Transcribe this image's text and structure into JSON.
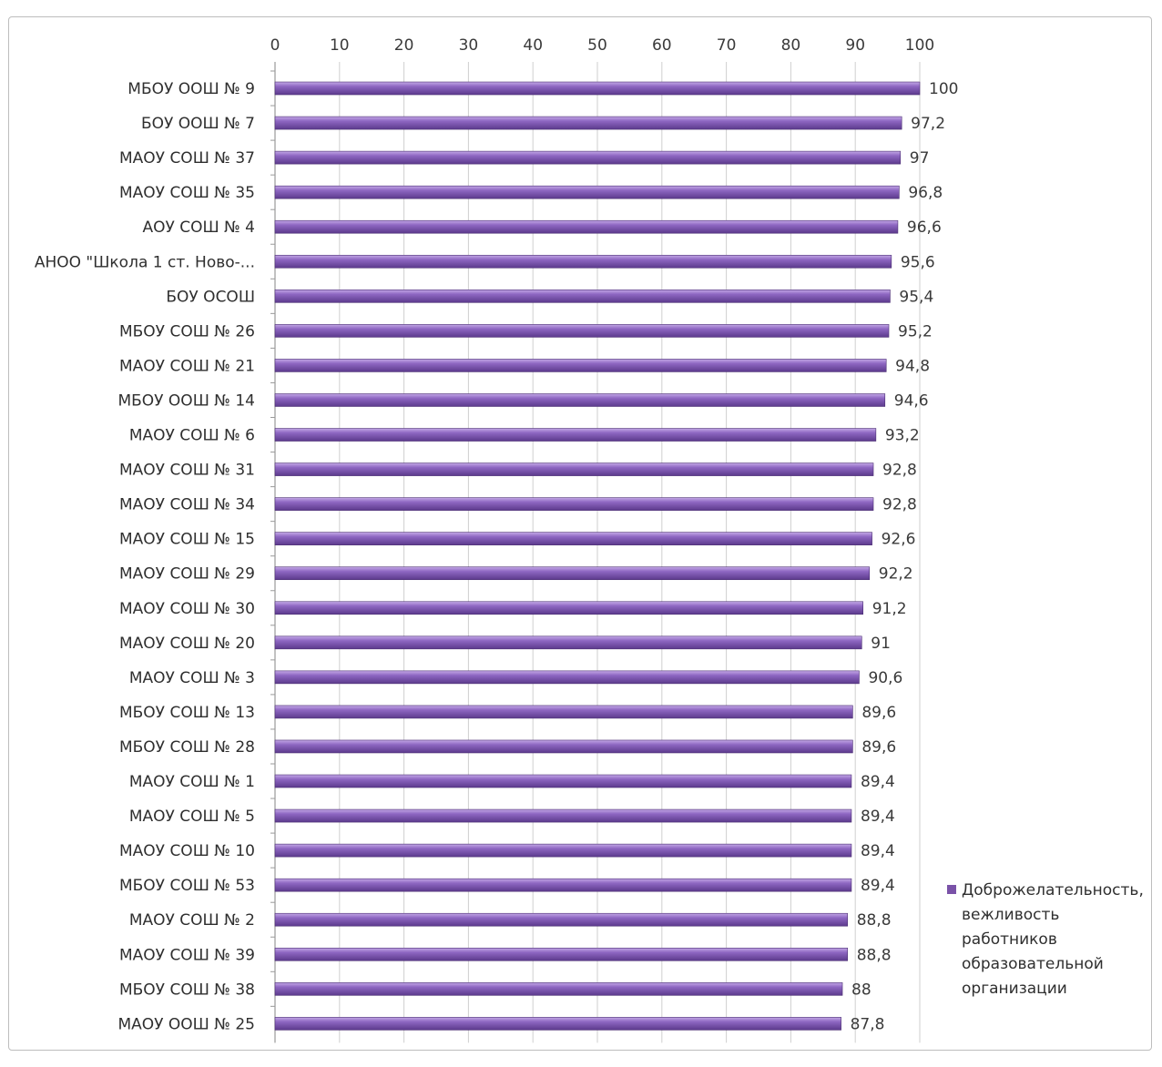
{
  "chart_data": {
    "type": "bar",
    "orientation": "horizontal",
    "title": "",
    "xlabel": "",
    "ylabel": "",
    "xlim": [
      0,
      100
    ],
    "ticks": [
      "0",
      "10",
      "20",
      "30",
      "40",
      "50",
      "60",
      "70",
      "80",
      "90",
      "100"
    ],
    "tick_position": "top",
    "grid": true,
    "legend_position": "right-bottom",
    "categories": [
      "МБОУ ООШ № 9",
      "БОУ ООШ № 7",
      "МАОУ СОШ № 37",
      "МАОУ СОШ № 35",
      "АОУ СОШ № 4",
      "АНОО \"Школа 1 ст. Ново-...",
      "БОУ ОСОШ",
      "МБОУ СОШ № 26",
      "МАОУ СОШ № 21",
      "МБОУ ООШ № 14",
      "МАОУ СОШ № 6",
      "МАОУ СОШ № 31",
      "МАОУ СОШ № 34",
      "МАОУ СОШ № 15",
      "МАОУ СОШ № 29",
      "МАОУ СОШ № 30",
      "МАОУ СОШ № 20",
      "МАОУ СОШ № 3",
      "МБОУ СОШ № 13",
      "МБОУ СОШ № 28",
      "МАОУ СОШ № 1",
      "МАОУ СОШ № 5",
      "МАОУ СОШ № 10",
      "МБОУ СОШ № 53",
      "МАОУ СОШ № 2",
      "МАОУ СОШ № 39",
      "МБОУ СОШ № 38",
      "МАОУ ООШ № 25"
    ],
    "series": [
      {
        "name": "Доброжелательность, вежливость работников образовательной организации",
        "name_lines": [
          "Доброжелательность,",
          "вежливость",
          "работников",
          "образовательной",
          "организации"
        ],
        "color": "#7a52a8",
        "values": [
          100,
          97.2,
          97,
          96.8,
          96.6,
          95.6,
          95.4,
          95.2,
          94.8,
          94.6,
          93.2,
          92.8,
          92.8,
          92.6,
          92.2,
          91.2,
          91,
          90.6,
          89.6,
          89.6,
          89.4,
          89.4,
          89.4,
          89.4,
          88.8,
          88.8,
          88,
          87.8
        ],
        "labels": [
          "100",
          "97,2",
          "97",
          "96,8",
          "96,6",
          "95,6",
          "95,4",
          "95,2",
          "94,8",
          "94,6",
          "93,2",
          "92,8",
          "92,8",
          "92,6",
          "92,2",
          "91,2",
          "91",
          "90,6",
          "89,6",
          "89,6",
          "89,4",
          "89,4",
          "89,4",
          "89,4",
          "88,8",
          "88,8",
          "88",
          "87,8"
        ]
      }
    ]
  }
}
